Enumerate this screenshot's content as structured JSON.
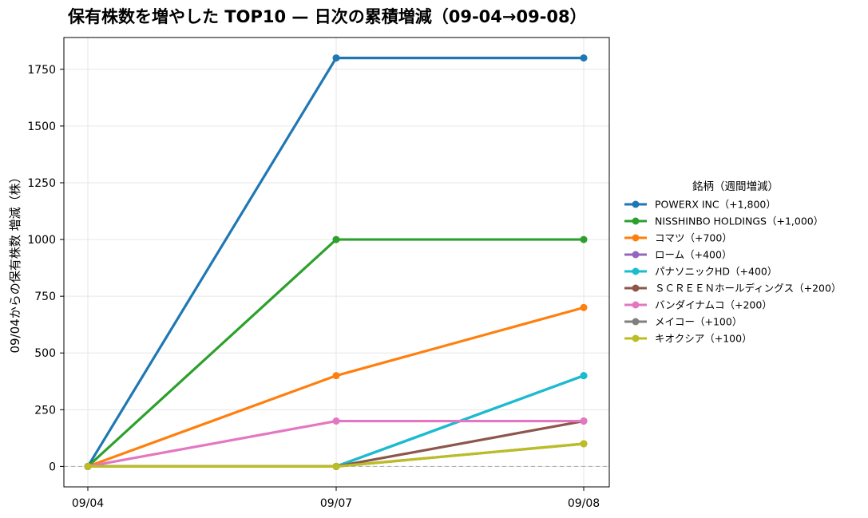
{
  "chart_data": {
    "type": "line",
    "title": "保有株数を増やした TOP10 — 日次の累積増減（09-04→09-08）",
    "xlabel": "",
    "ylabel": "09/04からの保有株数 増減（株）",
    "categories": [
      "09/04",
      "09/07",
      "09/08"
    ],
    "ylim": [
      -90,
      1890
    ],
    "yticks": [
      0,
      250,
      500,
      750,
      1000,
      1250,
      1500,
      1750
    ],
    "grid": true,
    "zero_line": true,
    "legend": {
      "title": "銘柄（週間増減）",
      "placement": "right"
    },
    "series": [
      {
        "name": "POWERX INC（+1,800）",
        "color": "#1f77b4",
        "values": [
          0,
          1800,
          1800
        ]
      },
      {
        "name": "NISSHINBO HOLDINGS（+1,000）",
        "color": "#2ca02c",
        "values": [
          0,
          1000,
          1000
        ]
      },
      {
        "name": "コマツ（+700）",
        "color": "#ff7f0e",
        "values": [
          0,
          400,
          700
        ]
      },
      {
        "name": "ローム（+400）",
        "color": "#9467bd",
        "values": [
          0,
          0,
          400
        ]
      },
      {
        "name": "パナソニックHD（+400）",
        "color": "#17becf",
        "values": [
          0,
          0,
          400
        ]
      },
      {
        "name": "ＳＣＲＥＥＮホールディングス（+200）",
        "color": "#8c564b",
        "values": [
          0,
          0,
          200
        ]
      },
      {
        "name": "バンダイナムコ（+200）",
        "color": "#e377c2",
        "values": [
          0,
          200,
          200
        ]
      },
      {
        "name": "メイコー（+100）",
        "color": "#7f7f7f",
        "values": [
          0,
          0,
          100
        ]
      },
      {
        "name": "キオクシア（+100）",
        "color": "#bcbd22",
        "values": [
          0,
          0,
          100
        ]
      }
    ]
  }
}
